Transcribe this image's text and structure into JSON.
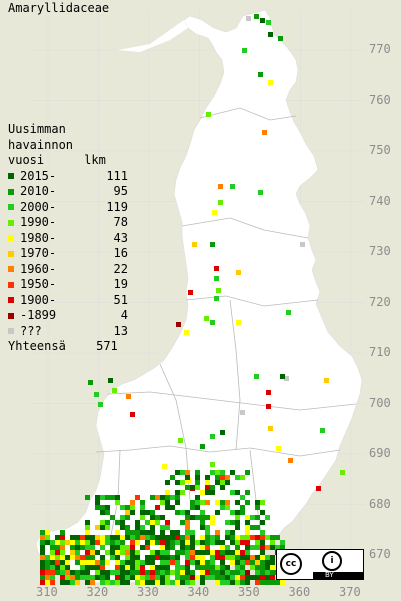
{
  "title": "Amaryllidaceae",
  "legend": {
    "heading_lines": [
      "Uusimman",
      "havainnon"
    ],
    "col_year": "vuosi",
    "col_count": "lkm",
    "rows": [
      {
        "label": "2015-",
        "count": "111",
        "color": "#006400"
      },
      {
        "label": "2010-",
        "count": "95",
        "color": "#0a9a0a"
      },
      {
        "label": "2000-",
        "count": "119",
        "color": "#22cc22"
      },
      {
        "label": "1990-",
        "count": "78",
        "color": "#66ee00"
      },
      {
        "label": "1980-",
        "count": "43",
        "color": "#ffff00"
      },
      {
        "label": "1970-",
        "count": "16",
        "color": "#ffcc00"
      },
      {
        "label": "1960-",
        "count": "22",
        "color": "#ff7f00"
      },
      {
        "label": "1950-",
        "count": "19",
        "color": "#ff3300"
      },
      {
        "label": "1900-",
        "count": "51",
        "color": "#dd0000"
      },
      {
        "label": "-1899",
        "count": "4",
        "color": "#990000"
      },
      {
        "label": "???",
        "count": "13",
        "color": "#c8c8c8"
      }
    ],
    "total_label": "Yhteensä",
    "total_count": "571"
  },
  "y_axis_labels": [
    "770",
    "760",
    "750",
    "740",
    "730",
    "720",
    "710",
    "700",
    "690",
    "680",
    "670"
  ],
  "x_axis_labels": [
    "310",
    "320",
    "330",
    "340",
    "350",
    "360",
    "370"
  ],
  "license": {
    "cc": "cc",
    "by_icon": "i",
    "by_text": "BY"
  },
  "colors": {
    "land": "#ffffff",
    "sea": "#e8e8d8",
    "axis_text": "#8c8c8c",
    "grid": "#e6e6e6"
  }
}
